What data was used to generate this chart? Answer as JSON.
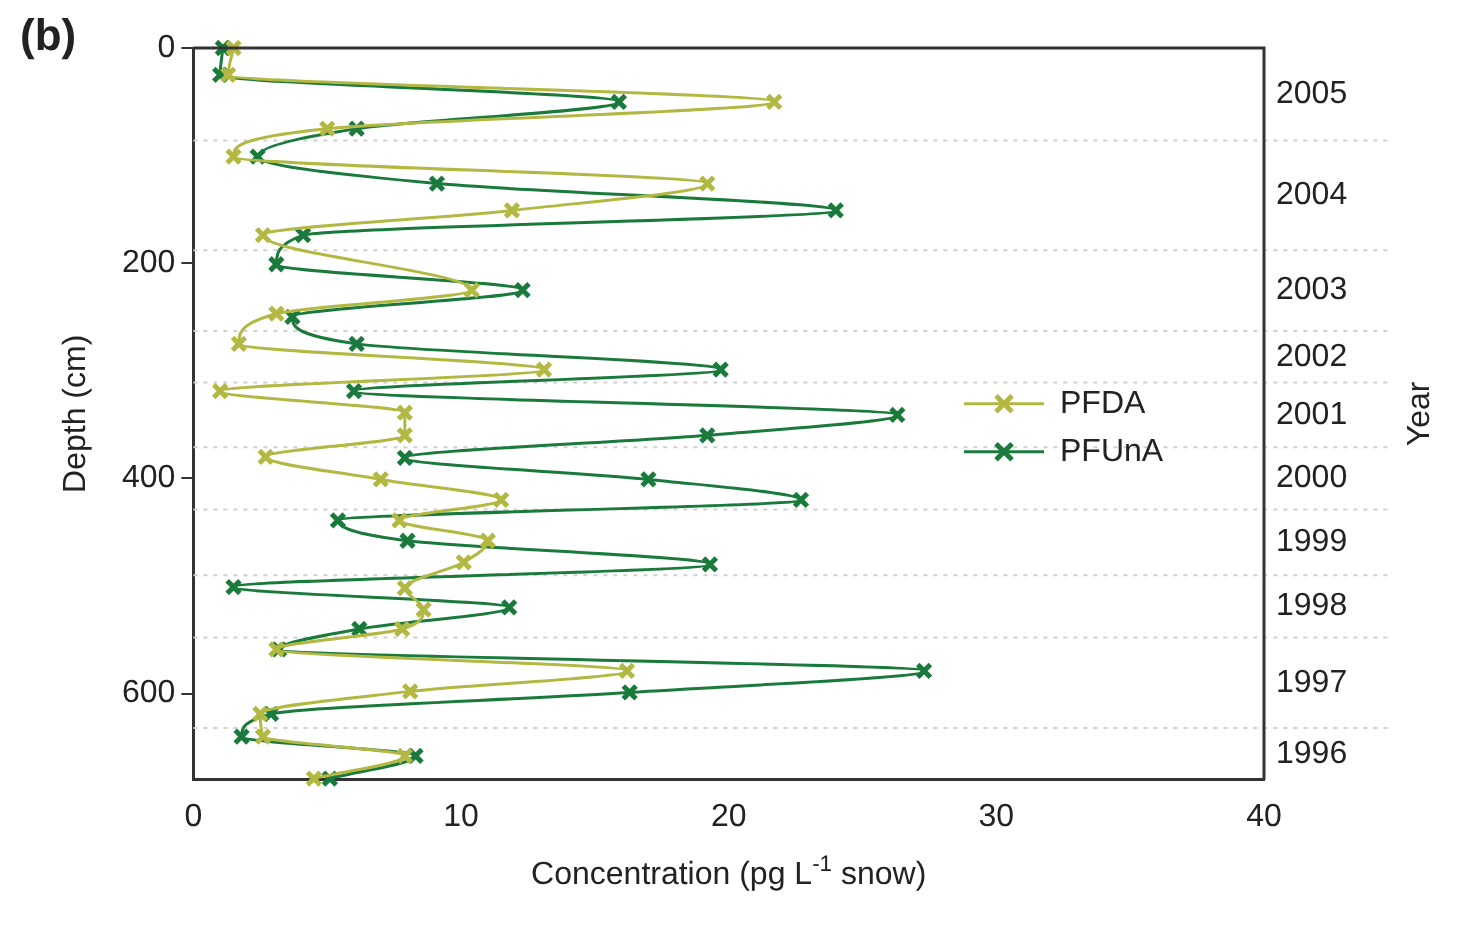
{
  "chart_data": {
    "type": "line",
    "title": "(b)",
    "xlabel": "Concentration (pg L$^{-1}$ snow)",
    "ylabel": "Depth (cm)",
    "y2label": "Year",
    "xlim": [
      0,
      40
    ],
    "xticks": [
      0,
      10,
      20,
      30,
      40
    ],
    "ylim": [
      680,
      0
    ],
    "yticks": [
      0,
      200,
      400,
      600
    ],
    "annotations": [
      "2005",
      "2004",
      "2003",
      "2002",
      "2001",
      "2000",
      "1999",
      "1998",
      "1997",
      "1996"
    ],
    "ref_lines": [
      {
        "axis": "y",
        "value": 86,
        "line_style": "dotted",
        "color": "#d0d0d0"
      },
      {
        "axis": "y",
        "value": 188,
        "line_style": "dotted",
        "color": "#d0d0d0"
      },
      {
        "axis": "y",
        "value": 263,
        "line_style": "dotted",
        "color": "#d0d0d0"
      },
      {
        "axis": "y",
        "value": 311,
        "line_style": "dotted",
        "color": "#d0d0d0"
      },
      {
        "axis": "y",
        "value": 371,
        "line_style": "dotted",
        "color": "#d0d0d0"
      },
      {
        "axis": "y",
        "value": 429,
        "line_style": "dotted",
        "color": "#d0d0d0"
      },
      {
        "axis": "y",
        "value": 490,
        "line_style": "dotted",
        "color": "#d0d0d0"
      },
      {
        "axis": "y",
        "value": 548,
        "line_style": "dotted",
        "color": "#d0d0d0"
      },
      {
        "axis": "y",
        "value": 632,
        "line_style": "dotted",
        "color": "#d0d0d0"
      }
    ],
    "grid": false,
    "legend": "right",
    "marker": "cross",
    "line_style": "solid",
    "series": [
      {
        "name": "PFDA",
        "color": "#b3b843",
        "x": [
          1.5,
          1.3,
          21.7,
          5.0,
          1.5,
          19.2,
          11.9,
          2.6,
          10.4,
          3.1,
          1.7,
          13.1,
          1.0,
          7.9,
          7.9,
          2.7,
          7.0,
          11.5,
          7.7,
          11.0,
          10.1,
          7.9,
          8.6,
          7.8,
          3.1,
          16.2,
          8.1,
          2.5,
          2.6,
          7.9,
          4.5
        ],
        "values": [
          0,
          25,
          50,
          75,
          101,
          126,
          151,
          174,
          225,
          247,
          275,
          299,
          319,
          339,
          360,
          380,
          401,
          420,
          439,
          458,
          478,
          502,
          522,
          540,
          559,
          579,
          598,
          619,
          640,
          658,
          679
        ]
      },
      {
        "name": "PFUnA",
        "color": "#1a7a3c",
        "x": [
          1.1,
          1.0,
          15.9,
          6.1,
          2.4,
          9.1,
          24.0,
          4.1,
          3.1,
          12.3,
          3.7,
          6.1,
          19.7,
          6.0,
          26.3,
          19.2,
          7.9,
          17.0,
          22.7,
          5.4,
          8.0,
          19.3,
          1.5,
          11.8,
          6.2,
          3.2,
          27.3,
          16.3,
          2.9,
          1.8,
          8.3,
          5.1
        ],
        "values": [
          0,
          25,
          50,
          75,
          101,
          126,
          151,
          174,
          201,
          225,
          250,
          275,
          299,
          319,
          341,
          360,
          381,
          401,
          420,
          439,
          458,
          480,
          501,
          520,
          540,
          559,
          579,
          599,
          619,
          640,
          658,
          679
        ]
      }
    ]
  }
}
